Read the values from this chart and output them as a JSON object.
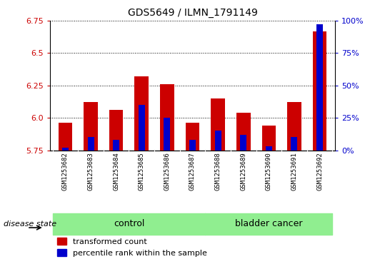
{
  "title": "GDS5649 / ILMN_1791149",
  "samples": [
    "GSM1253682",
    "GSM1253683",
    "GSM1253684",
    "GSM1253685",
    "GSM1253686",
    "GSM1253687",
    "GSM1253688",
    "GSM1253689",
    "GSM1253690",
    "GSM1253691",
    "GSM1253692"
  ],
  "transformed_count": [
    5.96,
    6.12,
    6.06,
    6.32,
    6.26,
    5.96,
    6.15,
    6.04,
    5.94,
    6.12,
    6.67
  ],
  "percentile_rank": [
    2,
    10,
    8,
    35,
    25,
    8,
    15,
    12,
    3,
    10,
    97
  ],
  "y_min": 5.75,
  "y_max": 6.75,
  "y_ticks": [
    5.75,
    6.0,
    6.25,
    6.5,
    6.75
  ],
  "right_y_ticks": [
    0,
    25,
    50,
    75,
    100
  ],
  "right_y_labels": [
    "0%",
    "25%",
    "50%",
    "75%",
    "100%"
  ],
  "control_count": 6,
  "bar_color_red": "#CC0000",
  "bar_color_blue": "#0000CC",
  "bar_width": 0.55,
  "blue_bar_width": 0.25,
  "tick_area_color": "#cccccc",
  "group_color": "#90EE90",
  "legend_labels": [
    "transformed count",
    "percentile rank within the sample"
  ],
  "disease_state_label": "disease state"
}
